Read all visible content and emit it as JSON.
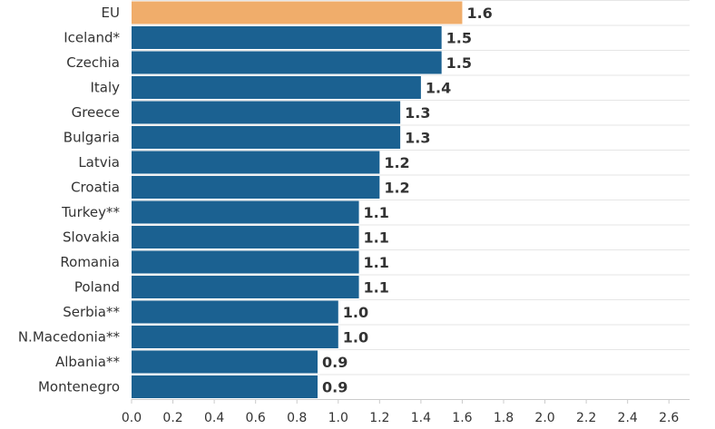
{
  "chart_data": {
    "type": "bar",
    "orientation": "horizontal",
    "categories": [
      "EU",
      "Iceland*",
      "Czechia",
      "Italy",
      "Greece",
      "Bulgaria",
      "Latvia",
      "Croatia",
      "Turkey**",
      "Slovakia",
      "Romania",
      "Poland",
      "Serbia**",
      "N.Macedonia**",
      "Albania**",
      "Montenegro"
    ],
    "values": [
      1.6,
      1.5,
      1.5,
      1.4,
      1.3,
      1.3,
      1.2,
      1.2,
      1.1,
      1.1,
      1.1,
      1.1,
      1.0,
      1.0,
      0.9,
      0.9
    ],
    "value_labels": [
      "1.6",
      "1.5",
      "1.5",
      "1.4",
      "1.3",
      "1.3",
      "1.2",
      "1.2",
      "1.1",
      "1.1",
      "1.1",
      "1.1",
      "1.0",
      "1.0",
      "0.9",
      "0.9"
    ],
    "xticks": [
      "0.0",
      "0.2",
      "0.4",
      "0.6",
      "0.8",
      "1.0",
      "1.2",
      "1.4",
      "1.6",
      "1.8",
      "2.0",
      "2.2",
      "2.4",
      "2.6"
    ],
    "xlim": [
      0,
      2.7
    ],
    "grid": true,
    "colors": {
      "bar": "#1b6191",
      "highlight": "#f0ad6b",
      "highlight_category": "EU"
    }
  }
}
